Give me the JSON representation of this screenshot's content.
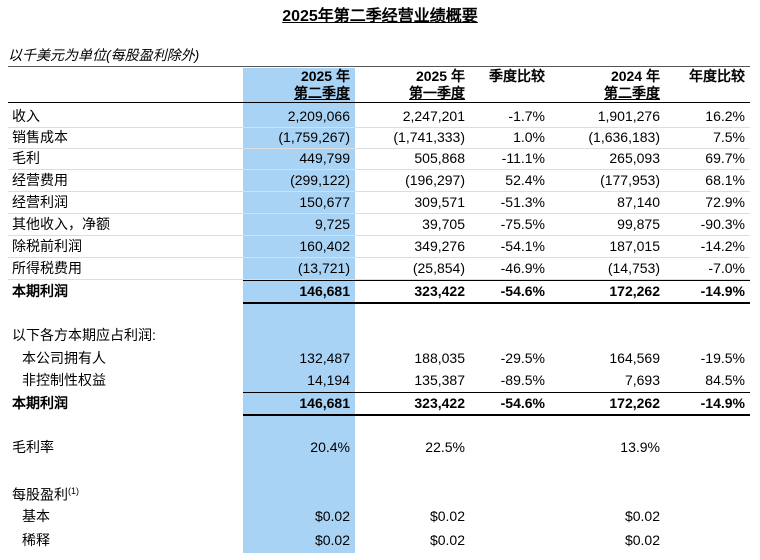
{
  "header": {
    "title": "2025年第二季经营业绩概要",
    "subtitle": "以千美元为单位(每股盈利除外)"
  },
  "table": {
    "columns": [
      [
        "2025 年",
        "第二季度"
      ],
      [
        "2025 年",
        "第一季度"
      ],
      [
        "季度比较"
      ],
      [
        "2024 年",
        "第二季度"
      ],
      [
        "年度比较"
      ]
    ],
    "rows": [
      {
        "label": "收入",
        "cells": [
          "2,209,066",
          "2,247,201",
          "-1.7%",
          "1,901,276",
          "16.2%"
        ]
      },
      {
        "label": "销售成本",
        "cells": [
          "(1,759,267)",
          "(1,741,333)",
          "1.0%",
          "(1,636,183)",
          "7.5%"
        ]
      },
      {
        "label": "毛利",
        "cells": [
          "449,799",
          "505,868",
          "-11.1%",
          "265,093",
          "69.7%"
        ]
      },
      {
        "label": "经营费用",
        "cells": [
          "(299,122)",
          "(196,297)",
          "52.4%",
          "(177,953)",
          "68.1%"
        ]
      },
      {
        "label": "经营利润",
        "cells": [
          "150,677",
          "309,571",
          "-51.3%",
          "87,140",
          "72.9%"
        ]
      },
      {
        "label": "其他收入，净额",
        "cells": [
          "9,725",
          "39,705",
          "-75.5%",
          "99,875",
          "-90.3%"
        ]
      },
      {
        "label": "除税前利润",
        "cells": [
          "160,402",
          "349,276",
          "-54.1%",
          "187,015",
          "-14.2%"
        ]
      },
      {
        "label": "所得税费用",
        "cells": [
          "(13,721)",
          "(25,854)",
          "-46.9%",
          "(14,753)",
          "-7.0%"
        ]
      },
      {
        "label": "本期利润",
        "cells": [
          "146,681",
          "323,422",
          "-54.6%",
          "172,262",
          "-14.9%"
        ],
        "bold": true
      },
      {
        "label": "以下各方本期应占利润:"
      },
      {
        "label": "本公司拥有人",
        "cells": [
          "132,487",
          "188,035",
          "-29.5%",
          "164,569",
          "-19.5%"
        ],
        "indent": true
      },
      {
        "label": "非控制性权益",
        "cells": [
          "14,194",
          "135,387",
          "-89.5%",
          "7,693",
          "84.5%"
        ],
        "indent": true
      },
      {
        "label": "本期利润",
        "cells": [
          "146,681",
          "323,422",
          "-54.6%",
          "172,262",
          "-14.9%"
        ],
        "bold": true
      },
      {
        "label": "毛利率",
        "cells": [
          "20.4%",
          "22.5%",
          null,
          "13.9%",
          null
        ]
      },
      {
        "label": "每股盈利",
        "note": "(1)"
      },
      {
        "label": "基本",
        "cells": [
          "$0.02",
          "$0.02",
          null,
          "$0.02",
          null
        ],
        "indent": true
      },
      {
        "label": "稀释",
        "cells": [
          "$0.02",
          "$0.02",
          null,
          "$0.02",
          null
        ],
        "indent": true
      }
    ]
  }
}
